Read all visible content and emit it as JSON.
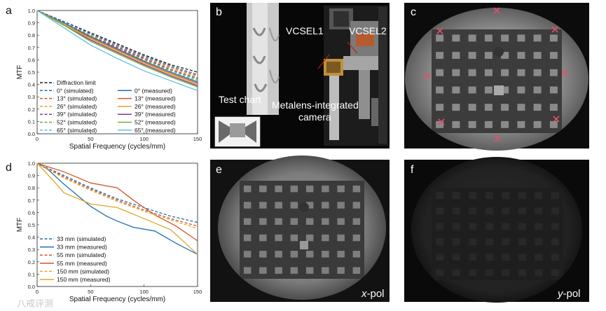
{
  "panel_letters": [
    "a",
    "b",
    "c",
    "d",
    "e",
    "f"
  ],
  "photo_labels": {
    "test_chart": "Test chart",
    "vcsel1": "VCSEL1",
    "vcsel2": "VCSEL2",
    "camera_line1": "Metalens-integrated",
    "camera_line2": "camera",
    "x_pol_prefix": "x",
    "x_pol_suffix": "-pol",
    "y_pol_prefix": "y",
    "y_pol_suffix": "-pol"
  },
  "watermark": "八戒评测",
  "colors": {
    "diffraction": "#1a1a1a",
    "deg0": "#1f6fb4",
    "deg13": "#d2562a",
    "deg26": "#e0a72a",
    "deg39": "#7b3a8e",
    "deg52": "#76ad3a",
    "deg65": "#5cc0e4",
    "mm33": "#1f6fb4",
    "mm55": "#d2562a",
    "mm150": "#e0a72a",
    "marker": "#e0506a"
  },
  "chart_data": [
    {
      "type": "line",
      "panel": "a",
      "xlabel": "Spatial Frequency (cycles/mm)",
      "ylabel": "MTF",
      "xlim": [
        0,
        150
      ],
      "ylim": [
        0,
        1.0
      ],
      "xticks": [
        "0",
        "50",
        "100",
        "150"
      ],
      "yticks": [
        "0.0",
        "0.1",
        "0.2",
        "0.3",
        "0.4",
        "0.5",
        "0.6",
        "0.7",
        "0.8",
        "0.9",
        "1.0"
      ],
      "legend_position": "bottom-left",
      "series": [
        {
          "name": "Diffraction limit",
          "style": "dashed",
          "color_key": "diffraction",
          "x": [
            0,
            25,
            50,
            75,
            100,
            125,
            150
          ],
          "y": [
            1.0,
            0.91,
            0.82,
            0.73,
            0.64,
            0.56,
            0.5
          ]
        },
        {
          "name": "0° (simulated)",
          "style": "dashed",
          "color_key": "deg0",
          "x": [
            0,
            25,
            50,
            75,
            100,
            125,
            150
          ],
          "y": [
            1.0,
            0.91,
            0.81,
            0.72,
            0.63,
            0.55,
            0.48
          ]
        },
        {
          "name": "13° (simulated)",
          "style": "dashed",
          "color_key": "deg13",
          "x": [
            0,
            25,
            50,
            75,
            100,
            125,
            150
          ],
          "y": [
            1.0,
            0.9,
            0.8,
            0.71,
            0.62,
            0.54,
            0.47
          ]
        },
        {
          "name": "26° (simulated)",
          "style": "dashed",
          "color_key": "deg26",
          "x": [
            0,
            25,
            50,
            75,
            100,
            125,
            150
          ],
          "y": [
            1.0,
            0.9,
            0.8,
            0.7,
            0.61,
            0.53,
            0.46
          ]
        },
        {
          "name": "39° (simulated)",
          "style": "dashed",
          "color_key": "deg39",
          "x": [
            0,
            25,
            50,
            75,
            100,
            125,
            150
          ],
          "y": [
            1.0,
            0.9,
            0.79,
            0.7,
            0.61,
            0.52,
            0.45
          ]
        },
        {
          "name": "52° (simulated)",
          "style": "dashed",
          "color_key": "deg52",
          "x": [
            0,
            25,
            50,
            75,
            100,
            125,
            150
          ],
          "y": [
            1.0,
            0.89,
            0.79,
            0.69,
            0.6,
            0.51,
            0.44
          ]
        },
        {
          "name": "65° (simulated)",
          "style": "dashed",
          "color_key": "deg65",
          "x": [
            0,
            25,
            50,
            75,
            100,
            125,
            150
          ],
          "y": [
            1.0,
            0.89,
            0.78,
            0.68,
            0.59,
            0.5,
            0.43
          ]
        },
        {
          "name": "0° (measured)",
          "style": "solid",
          "color_key": "deg0",
          "x": [
            0,
            25,
            50,
            75,
            100,
            125,
            150
          ],
          "y": [
            1.0,
            0.9,
            0.79,
            0.69,
            0.59,
            0.5,
            0.42
          ]
        },
        {
          "name": "13° (measured)",
          "style": "solid",
          "color_key": "deg13",
          "x": [
            0,
            25,
            50,
            75,
            100,
            125,
            150
          ],
          "y": [
            1.0,
            0.89,
            0.78,
            0.68,
            0.58,
            0.49,
            0.41
          ]
        },
        {
          "name": "26° (measured)",
          "style": "solid",
          "color_key": "deg26",
          "x": [
            0,
            25,
            50,
            75,
            100,
            125,
            150
          ],
          "y": [
            1.0,
            0.89,
            0.77,
            0.67,
            0.57,
            0.48,
            0.4
          ]
        },
        {
          "name": "39° (measured)",
          "style": "solid",
          "color_key": "deg39",
          "x": [
            0,
            25,
            50,
            75,
            100,
            125,
            150
          ],
          "y": [
            1.0,
            0.88,
            0.76,
            0.66,
            0.56,
            0.47,
            0.39
          ]
        },
        {
          "name": "52° (measured)",
          "style": "solid",
          "color_key": "deg52",
          "x": [
            0,
            25,
            50,
            75,
            100,
            125,
            150
          ],
          "y": [
            1.0,
            0.88,
            0.75,
            0.65,
            0.55,
            0.46,
            0.38
          ]
        },
        {
          "name": "65° (measured)",
          "style": "solid",
          "color_key": "deg65",
          "x": [
            0,
            25,
            50,
            75,
            100,
            125,
            150
          ],
          "y": [
            1.0,
            0.86,
            0.72,
            0.61,
            0.51,
            0.43,
            0.35
          ]
        }
      ]
    },
    {
      "type": "line",
      "panel": "d",
      "xlabel": "Spatial Frequency (cycles/mm)",
      "ylabel": "MTF",
      "xlim": [
        0,
        150
      ],
      "ylim": [
        0,
        1.0
      ],
      "xticks": [
        "0",
        "50",
        "100",
        "150"
      ],
      "yticks": [
        "0.0",
        "0.1",
        "0.2",
        "0.3",
        "0.4",
        "0.5",
        "0.6",
        "0.7",
        "0.8",
        "0.9",
        "1.0"
      ],
      "legend_position": "bottom-left",
      "series": [
        {
          "name": "33 mm (simulated)",
          "style": "dashed",
          "color_key": "mm33",
          "x": [
            0,
            25,
            50,
            75,
            100,
            125,
            150
          ],
          "y": [
            1.0,
            0.9,
            0.8,
            0.71,
            0.64,
            0.57,
            0.52
          ]
        },
        {
          "name": "33 mm (measured)",
          "style": "solid",
          "color_key": "mm33",
          "x": [
            0,
            10,
            25,
            50,
            65,
            75,
            90,
            110,
            130,
            150
          ],
          "y": [
            1.0,
            0.95,
            0.83,
            0.65,
            0.57,
            0.53,
            0.48,
            0.45,
            0.35,
            0.26
          ]
        },
        {
          "name": "55 mm (simulated)",
          "style": "dashed",
          "color_key": "mm55",
          "x": [
            0,
            25,
            50,
            75,
            100,
            125,
            150
          ],
          "y": [
            1.0,
            0.89,
            0.79,
            0.7,
            0.62,
            0.55,
            0.49
          ]
        },
        {
          "name": "55 mm (measured)",
          "style": "solid",
          "color_key": "mm55",
          "x": [
            0,
            25,
            50,
            75,
            90,
            110,
            130,
            150
          ],
          "y": [
            1.0,
            0.93,
            0.84,
            0.8,
            0.7,
            0.58,
            0.49,
            0.37
          ]
        },
        {
          "name": "150 mm (simulated)",
          "style": "dashed",
          "color_key": "mm150",
          "x": [
            0,
            25,
            50,
            75,
            100,
            125,
            150
          ],
          "y": [
            1.0,
            0.88,
            0.78,
            0.69,
            0.61,
            0.54,
            0.47
          ]
        },
        {
          "name": "150 mm (measured)",
          "style": "solid",
          "color_key": "mm150",
          "x": [
            0,
            15,
            25,
            50,
            75,
            100,
            125,
            150
          ],
          "y": [
            1.0,
            0.86,
            0.76,
            0.67,
            0.64,
            0.55,
            0.46,
            0.26
          ]
        }
      ]
    }
  ]
}
